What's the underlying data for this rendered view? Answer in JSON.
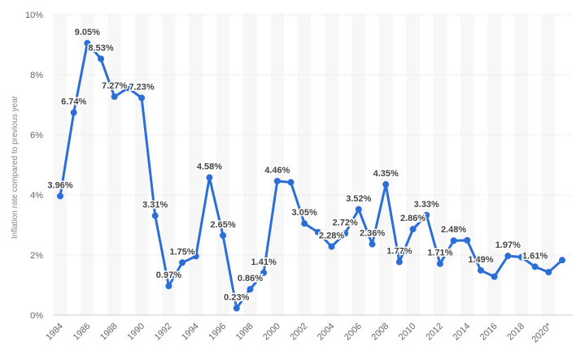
{
  "chart_data": {
    "type": "line",
    "title": "",
    "xlabel": "",
    "ylabel": "Inflation rate compared to previous year",
    "ylim": [
      0,
      10
    ],
    "yticks": [
      "0%",
      "2%",
      "4%",
      "6%",
      "8%",
      "10%"
    ],
    "grid": true,
    "series_color": "#2b6fd6",
    "x": [
      "1984",
      "1985",
      "1986",
      "1987",
      "1988",
      "1989",
      "1990",
      "1991",
      "1992",
      "1993",
      "1994",
      "1995",
      "1996",
      "1997",
      "1998",
      "1999",
      "2000",
      "2001",
      "2002",
      "2003",
      "2004",
      "2005",
      "2006",
      "2007",
      "2008",
      "2009",
      "2010",
      "2011",
      "2012",
      "2013",
      "2014",
      "2015",
      "2016",
      "2017",
      "2018",
      "2019",
      "2020*",
      "2021*"
    ],
    "xticks": [
      "1984",
      "1986",
      "1988",
      "1990",
      "1992",
      "1994",
      "1996",
      "1998",
      "2000",
      "2002",
      "2004",
      "2006",
      "2008",
      "2010",
      "2012",
      "2014",
      "2016",
      "2018",
      "2020*"
    ],
    "series": [
      {
        "values": [
          3.96,
          6.74,
          9.05,
          8.53,
          7.27,
          7.56,
          7.23,
          3.31,
          0.97,
          1.75,
          1.96,
          4.58,
          2.65,
          0.23,
          0.86,
          1.41,
          4.46,
          4.42,
          3.05,
          2.76,
          2.28,
          2.72,
          3.52,
          2.36,
          4.35,
          1.77,
          2.86,
          3.33,
          1.71,
          2.48,
          2.49,
          1.49,
          1.28,
          1.97,
          1.93,
          1.61,
          1.43,
          1.83
        ]
      }
    ],
    "data_labels": [
      {
        "i": 0,
        "text": "3.96%"
      },
      {
        "i": 1,
        "text": "6.74%"
      },
      {
        "i": 2,
        "text": "9.05%"
      },
      {
        "i": 3,
        "text": "8.53%"
      },
      {
        "i": 4,
        "text": "7.27%"
      },
      {
        "i": 6,
        "text": "7.23%"
      },
      {
        "i": 7,
        "text": "3.31%"
      },
      {
        "i": 8,
        "text": "0.97%"
      },
      {
        "i": 9,
        "text": "1.75%"
      },
      {
        "i": 11,
        "text": "4.58%"
      },
      {
        "i": 12,
        "text": "2.65%"
      },
      {
        "i": 13,
        "text": "0.23%"
      },
      {
        "i": 14,
        "text": "0.86%"
      },
      {
        "i": 15,
        "text": "1.41%"
      },
      {
        "i": 16,
        "text": "4.46%"
      },
      {
        "i": 18,
        "text": "3.05%"
      },
      {
        "i": 20,
        "text": "2.28%"
      },
      {
        "i": 21,
        "text": "2.72%"
      },
      {
        "i": 22,
        "text": "3.52%"
      },
      {
        "i": 23,
        "text": "2.36%"
      },
      {
        "i": 24,
        "text": "4.35%"
      },
      {
        "i": 25,
        "text": "1.77%"
      },
      {
        "i": 26,
        "text": "2.86%"
      },
      {
        "i": 27,
        "text": "3.33%"
      },
      {
        "i": 28,
        "text": "1.71%"
      },
      {
        "i": 29,
        "text": "2.48%"
      },
      {
        "i": 31,
        "text": "1.49%"
      },
      {
        "i": 33,
        "text": "1.97%"
      },
      {
        "i": 35,
        "text": "1.61%"
      }
    ]
  }
}
